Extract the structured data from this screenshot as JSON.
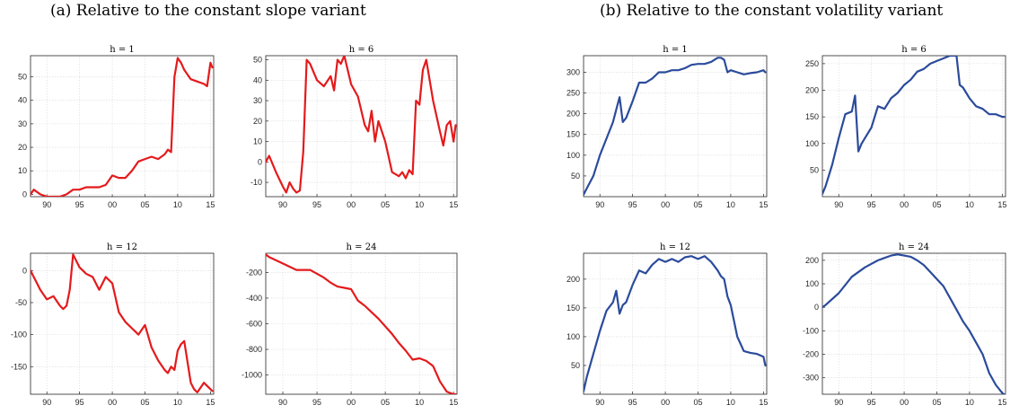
{
  "panels": {
    "a": {
      "title": "(a) Relative to the constant slope variant"
    },
    "b": {
      "title": "(b) Relative to the constant volatility variant"
    }
  },
  "colors": {
    "a": "#e41a1c",
    "b": "#2b4b9b"
  },
  "chart_data": [
    {
      "type": "line",
      "panel": "a",
      "title": "h = 1",
      "grid": true,
      "xlim": [
        1987.5,
        2015.5
      ],
      "ylim": [
        -1,
        59
      ],
      "xticks": [
        1990,
        1995,
        2000,
        2005,
        2010,
        2015
      ],
      "xticklabels": [
        "90",
        "95",
        "00",
        "05",
        "10",
        "15"
      ],
      "yticks": [
        0,
        10,
        20,
        30,
        40,
        50
      ],
      "yticklabels": [
        "0",
        "10",
        "20",
        "30",
        "40",
        "50"
      ],
      "series": [
        {
          "x": [
            1987.5,
            1988,
            1988.5,
            1989,
            1990,
            1991,
            1992,
            1993,
            1994,
            1995,
            1996,
            1997,
            1998,
            1999,
            2000,
            2001,
            2002,
            2003,
            2004,
            2005,
            2006,
            2007,
            2008,
            2008.5,
            2009,
            2009.5,
            2010,
            2010.5,
            2011,
            2012,
            2013,
            2014,
            2014.5,
            2015,
            2015.3
          ],
          "y": [
            0,
            2,
            1,
            0,
            -1,
            -1,
            -1,
            0,
            2,
            2,
            3,
            3,
            3,
            4,
            8,
            7,
            7,
            10,
            14,
            15,
            16,
            15,
            17,
            19,
            18,
            50,
            58,
            56,
            53,
            49,
            48,
            47,
            46,
            56,
            54
          ]
        }
      ]
    },
    {
      "type": "line",
      "panel": "a",
      "title": "h = 6",
      "grid": true,
      "xlim": [
        1987.5,
        2015.5
      ],
      "ylim": [
        -17,
        52
      ],
      "xticks": [
        1990,
        1995,
        2000,
        2005,
        2010,
        2015
      ],
      "xticklabels": [
        "90",
        "95",
        "00",
        "05",
        "10",
        "15"
      ],
      "yticks": [
        -10,
        0,
        10,
        20,
        30,
        40,
        50
      ],
      "yticklabels": [
        "-10",
        "0",
        "10",
        "20",
        "30",
        "40",
        "50"
      ],
      "series": [
        {
          "x": [
            1987.5,
            1988,
            1989,
            1990,
            1990.5,
            1991,
            1991.5,
            1992,
            1992.5,
            1993,
            1993.5,
            1994,
            1995,
            1996,
            1997,
            1997.5,
            1998,
            1998.5,
            1999,
            2000,
            2001,
            2002,
            2002.5,
            2003,
            2003.5,
            2004,
            2005,
            2006,
            2007,
            2007.5,
            2008,
            2008.5,
            2009,
            2009.5,
            2010,
            2010.5,
            2011,
            2012,
            2013,
            2013.5,
            2014,
            2014.5,
            2015,
            2015.3
          ],
          "y": [
            0,
            3,
            -5,
            -12,
            -15,
            -10,
            -13,
            -15,
            -14,
            5,
            50,
            48,
            40,
            37,
            42,
            35,
            50,
            48,
            52,
            38,
            32,
            18,
            15,
            25,
            10,
            20,
            10,
            -5,
            -7,
            -5,
            -8,
            -4,
            -6,
            30,
            28,
            45,
            50,
            30,
            15,
            8,
            18,
            20,
            10,
            18
          ]
        }
      ]
    },
    {
      "type": "line",
      "panel": "a",
      "title": "h = 12",
      "grid": true,
      "xlim": [
        1987.5,
        2015.5
      ],
      "ylim": [
        -193,
        27
      ],
      "xticks": [
        1990,
        1995,
        2000,
        2005,
        2010,
        2015
      ],
      "xticklabels": [
        "90",
        "95",
        "00",
        "05",
        "10",
        "15"
      ],
      "yticks": [
        -150,
        -100,
        -50,
        0
      ],
      "yticklabels": [
        "-150",
        "-100",
        "-50",
        "0"
      ],
      "series": [
        {
          "x": [
            1987.5,
            1988,
            1989,
            1990,
            1991,
            1992,
            1992.5,
            1993,
            1993.5,
            1994,
            1995,
            1996,
            1997,
            1998,
            1999,
            2000,
            2001,
            2002,
            2003,
            2004,
            2005,
            2006,
            2007,
            2008,
            2008.5,
            2009,
            2009.5,
            2010,
            2010.5,
            2011,
            2012,
            2012.5,
            2013,
            2014,
            2015,
            2015.3
          ],
          "y": [
            0,
            -10,
            -30,
            -45,
            -40,
            -55,
            -60,
            -55,
            -30,
            25,
            5,
            -5,
            -10,
            -30,
            -10,
            -20,
            -65,
            -80,
            -90,
            -100,
            -85,
            -120,
            -140,
            -155,
            -160,
            -150,
            -155,
            -125,
            -115,
            -110,
            -175,
            -185,
            -190,
            -175,
            -185,
            -188
          ]
        }
      ]
    },
    {
      "type": "line",
      "panel": "a",
      "title": "h = 24",
      "grid": true,
      "xlim": [
        1987.5,
        2015.5
      ],
      "ylim": [
        -1150,
        -50
      ],
      "xticks": [
        1990,
        1995,
        2000,
        2005,
        2010,
        2015
      ],
      "xticklabels": [
        "90",
        "95",
        "00",
        "05",
        "10",
        "15"
      ],
      "yticks": [
        -1000,
        -800,
        -600,
        -400,
        -200
      ],
      "yticklabels": [
        "-1000",
        "-800",
        "-600",
        "-400",
        "-200"
      ],
      "series": [
        {
          "x": [
            1987.5,
            1988,
            1990,
            1992,
            1994,
            1996,
            1997,
            1998,
            1999,
            2000,
            2001,
            2002,
            2003,
            2004,
            2005,
            2006,
            2007,
            2008,
            2009,
            2010,
            2011,
            2012,
            2013,
            2014,
            2015,
            2015.3
          ],
          "y": [
            -60,
            -80,
            -130,
            -180,
            -180,
            -240,
            -280,
            -310,
            -320,
            -330,
            -420,
            -460,
            -510,
            -560,
            -620,
            -680,
            -750,
            -810,
            -880,
            -870,
            -890,
            -930,
            -1050,
            -1130,
            -1150,
            -1150
          ]
        }
      ]
    },
    {
      "type": "line",
      "panel": "b",
      "title": "h = 1",
      "grid": true,
      "xlim": [
        1987.5,
        2015.5
      ],
      "ylim": [
        0,
        340
      ],
      "xticks": [
        1990,
        1995,
        2000,
        2005,
        2010,
        2015
      ],
      "xticklabels": [
        "90",
        "95",
        "00",
        "05",
        "10",
        "15"
      ],
      "yticks": [
        50,
        100,
        150,
        200,
        250,
        300
      ],
      "yticklabels": [
        "50",
        "100",
        "150",
        "200",
        "250",
        "300"
      ],
      "series": [
        {
          "x": [
            1987.5,
            1988,
            1989,
            1990,
            1991,
            1992,
            1992.5,
            1993,
            1993.5,
            1994,
            1995,
            1996,
            1997,
            1998,
            1999,
            2000,
            2001,
            2002,
            2003,
            2004,
            2005,
            2006,
            2007,
            2008,
            2008.5,
            2009,
            2009.5,
            2010,
            2011,
            2012,
            2013,
            2014,
            2015,
            2015.3
          ],
          "y": [
            5,
            20,
            50,
            100,
            140,
            180,
            210,
            240,
            180,
            190,
            230,
            275,
            275,
            285,
            300,
            300,
            305,
            305,
            310,
            318,
            320,
            320,
            325,
            335,
            335,
            330,
            300,
            305,
            300,
            295,
            298,
            300,
            305,
            300
          ]
        }
      ]
    },
    {
      "type": "line",
      "panel": "b",
      "title": "h = 6",
      "grid": true,
      "xlim": [
        1987.5,
        2015.5
      ],
      "ylim": [
        0,
        265
      ],
      "xticks": [
        1990,
        1995,
        2000,
        2005,
        2010,
        2015
      ],
      "xticklabels": [
        "90",
        "95",
        "00",
        "05",
        "10",
        "15"
      ],
      "yticks": [
        50,
        100,
        150,
        200,
        250
      ],
      "yticklabels": [
        "50",
        "100",
        "150",
        "200",
        "250"
      ],
      "series": [
        {
          "x": [
            1987.5,
            1988,
            1989,
            1990,
            1991,
            1992,
            1992.5,
            1993,
            1993.5,
            1994,
            1995,
            1996,
            1997,
            1998,
            1999,
            2000,
            2001,
            2002,
            2003,
            2004,
            2005,
            2006,
            2007,
            2008,
            2008.5,
            2009,
            2009.5,
            2010,
            2011,
            2012,
            2013,
            2014,
            2015,
            2015.3
          ],
          "y": [
            5,
            20,
            60,
            110,
            155,
            160,
            190,
            85,
            100,
            110,
            130,
            170,
            165,
            185,
            195,
            210,
            220,
            235,
            240,
            250,
            255,
            260,
            265,
            265,
            210,
            205,
            195,
            185,
            170,
            165,
            155,
            155,
            150,
            150
          ]
        }
      ]
    },
    {
      "type": "line",
      "panel": "b",
      "title": "h = 12",
      "grid": true,
      "xlim": [
        1987.5,
        2015.5
      ],
      "ylim": [
        0,
        245
      ],
      "xticks": [
        1990,
        1995,
        2000,
        2005,
        2010,
        2015
      ],
      "xticklabels": [
        "90",
        "95",
        "00",
        "05",
        "10",
        "15"
      ],
      "yticks": [
        50,
        100,
        150,
        200
      ],
      "yticklabels": [
        "50",
        "100",
        "150",
        "200"
      ],
      "series": [
        {
          "x": [
            1987.5,
            1988,
            1989,
            1990,
            1991,
            1992,
            1992.5,
            1993,
            1993.5,
            1994,
            1995,
            1996,
            1997,
            1998,
            1999,
            2000,
            2001,
            2002,
            2003,
            2004,
            2005,
            2006,
            2007,
            2008,
            2008.5,
            2009,
            2009.5,
            2010,
            2011,
            2012,
            2013,
            2014,
            2015,
            2015.3
          ],
          "y": [
            5,
            30,
            70,
            110,
            145,
            160,
            180,
            140,
            155,
            160,
            190,
            215,
            210,
            225,
            235,
            230,
            235,
            230,
            238,
            240,
            235,
            240,
            230,
            215,
            205,
            200,
            170,
            155,
            100,
            75,
            72,
            70,
            65,
            50
          ]
        }
      ]
    },
    {
      "type": "line",
      "panel": "b",
      "title": "h = 24",
      "grid": true,
      "xlim": [
        1987.5,
        2015.5
      ],
      "ylim": [
        -370,
        230
      ],
      "xticks": [
        1990,
        1995,
        2000,
        2005,
        2010,
        2015
      ],
      "xticklabels": [
        "90",
        "95",
        "00",
        "05",
        "10",
        "15"
      ],
      "yticks": [
        -300,
        -200,
        -100,
        0,
        100,
        200
      ],
      "yticklabels": [
        "-300",
        "-200",
        "-100",
        "0",
        "100",
        "200"
      ],
      "series": [
        {
          "x": [
            1987.5,
            1988,
            1990,
            1992,
            1994,
            1996,
            1997,
            1998,
            1999,
            2000,
            2001,
            2002,
            2003,
            2004,
            2005,
            2006,
            2007,
            2008,
            2009,
            2010,
            2011,
            2012,
            2013,
            2014,
            2015,
            2015.3
          ],
          "y": [
            0,
            10,
            60,
            130,
            170,
            200,
            210,
            220,
            225,
            220,
            215,
            200,
            180,
            150,
            120,
            90,
            40,
            -10,
            -60,
            -100,
            -150,
            -200,
            -280,
            -330,
            -365,
            -370
          ]
        }
      ]
    }
  ]
}
